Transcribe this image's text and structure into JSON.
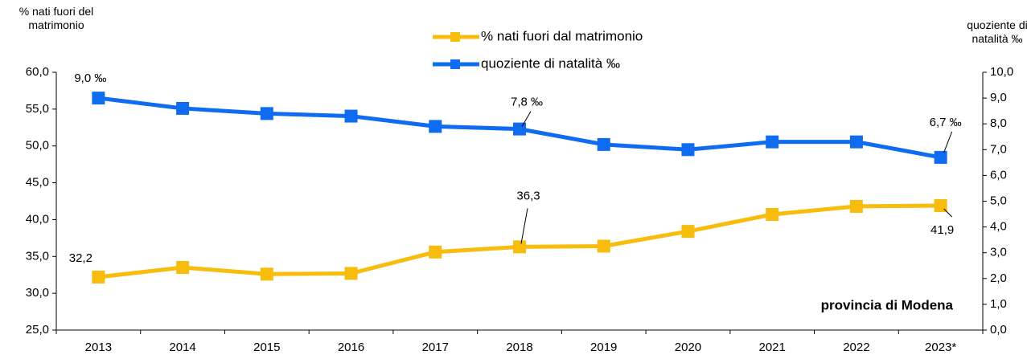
{
  "chart_data": {
    "type": "line",
    "y_label": "% nati fuori del matrimonio",
    "y2_label": "quoziente di natalità ‰",
    "annotation": "provincia di Modena",
    "categories": [
      "2013",
      "2014",
      "2015",
      "2016",
      "2017",
      "2018",
      "2019",
      "2020",
      "2021",
      "2022",
      "2023*"
    ],
    "series": [
      {
        "name": "% nati fuori dal matrimonio",
        "color": "#f8bc0c",
        "values": [
          32.2,
          33.5,
          32.6,
          32.7,
          35.6,
          36.3,
          36.4,
          38.4,
          40.7,
          41.8,
          41.9
        ],
        "value_labels": [
          "32,2",
          null,
          null,
          null,
          null,
          "36,3",
          null,
          null,
          null,
          null,
          "41,9"
        ]
      },
      {
        "name": "quoziente di natalità ‰",
        "color": "#0f6cf0",
        "axis": "y2",
        "values": [
          9.0,
          8.6,
          8.4,
          8.3,
          7.9,
          7.8,
          7.2,
          7.0,
          7.3,
          7.3,
          6.7
        ],
        "value_labels": [
          "9,0 ‰",
          null,
          null,
          null,
          null,
          "7,8 ‰",
          null,
          null,
          null,
          null,
          "6,7 ‰"
        ]
      }
    ],
    "ylim": [
      25,
      60
    ],
    "yticks": [
      {
        "value": 25,
        "label": "25,0"
      },
      {
        "value": 30,
        "label": "30,0"
      },
      {
        "value": 35,
        "label": "35,0"
      },
      {
        "value": 40,
        "label": "40,0"
      },
      {
        "value": 45,
        "label": "45,0"
      },
      {
        "value": 50,
        "label": "50,0"
      },
      {
        "value": 55,
        "label": "55,0"
      },
      {
        "value": 60,
        "label": "60,0"
      }
    ],
    "y2lim": [
      0,
      10
    ],
    "y2ticks": [
      {
        "value": 0,
        "label": "0,0"
      },
      {
        "value": 1,
        "label": "1,0"
      },
      {
        "value": 2,
        "label": "2,0"
      },
      {
        "value": 3,
        "label": "3,0"
      },
      {
        "value": 4,
        "label": "4,0"
      },
      {
        "value": 5,
        "label": "5,0"
      },
      {
        "value": 6,
        "label": "6,0"
      },
      {
        "value": 7,
        "label": "7,0"
      },
      {
        "value": 8,
        "label": "8,0"
      },
      {
        "value": 9,
        "label": "9,0"
      },
      {
        "value": 10,
        "label": "10,0"
      }
    ]
  }
}
